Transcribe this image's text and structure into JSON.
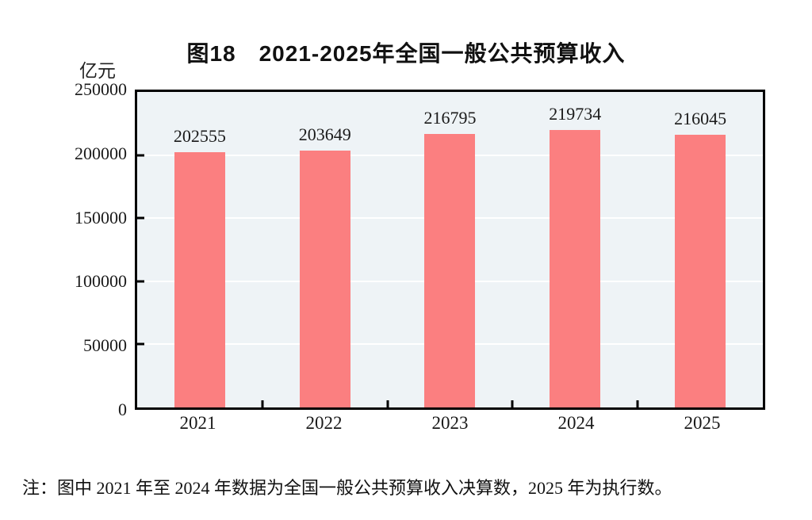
{
  "title": "图18　2021-2025年全国一般公共预算收入",
  "unit_label": "亿元",
  "note": "注：图中 2021 年至 2024 年数据为全国一般公共预算收入决算数，2025 年为执行数。",
  "colors": {
    "bar": "#FB7F80",
    "plot_bg": "#EEF3F6",
    "axis": "#000000",
    "gridline": "#FFFFFF",
    "background": "#FFFFFF"
  },
  "chart_data": {
    "type": "bar",
    "categories": [
      "2021",
      "2022",
      "2023",
      "2024",
      "2025"
    ],
    "values": [
      202555,
      203649,
      216795,
      219734,
      216045
    ],
    "title": "图18　2021-2025年全国一般公共预算收入",
    "xlabel": "",
    "ylabel": "亿元",
    "ylim": [
      0,
      250000
    ],
    "yticks": [
      0,
      50000,
      100000,
      150000,
      200000,
      250000
    ],
    "grid": true,
    "legend_position": "none",
    "bar_labels": [
      "202555",
      "203649",
      "216795",
      "219734",
      "216045"
    ]
  }
}
